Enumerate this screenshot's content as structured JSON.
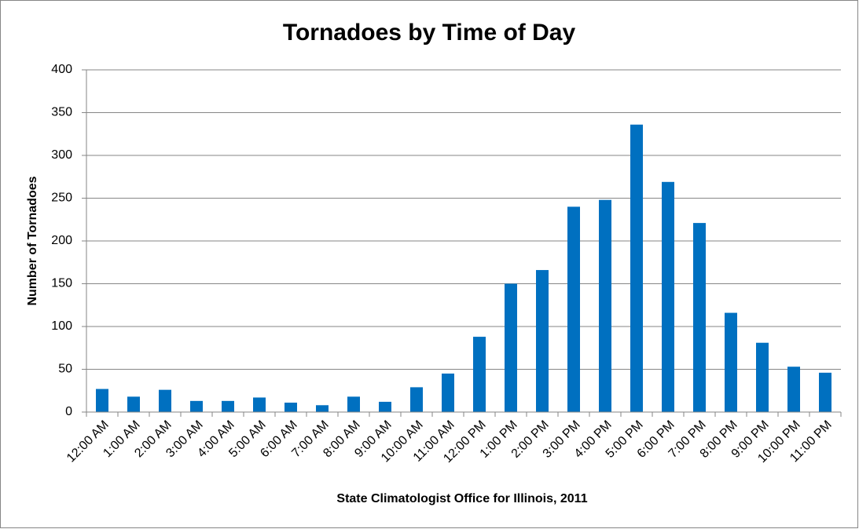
{
  "chart_data": {
    "type": "bar",
    "title": "Tornadoes by Time of Day",
    "x_label": "State Climatologist Office for Illinois, 2011",
    "y_label": "Number of Tornadoes",
    "categories": [
      "12:00 AM",
      "1:00 AM",
      "2:00 AM",
      "3:00 AM",
      "4:00 AM",
      "5:00 AM",
      "6:00 AM",
      "7:00 AM",
      "8:00 AM",
      "9:00 AM",
      "10:00 AM",
      "11:00 AM",
      "12:00 PM",
      "1:00 PM",
      "2:00 PM",
      "3:00 PM",
      "4:00 PM",
      "5:00 PM",
      "6:00 PM",
      "7:00 PM",
      "8:00 PM",
      "9:00 PM",
      "10:00 PM",
      "11:00 PM"
    ],
    "values": [
      27,
      18,
      26,
      13,
      13,
      17,
      11,
      8,
      18,
      12,
      29,
      45,
      88,
      150,
      166,
      240,
      248,
      336,
      269,
      221,
      116,
      81,
      53,
      46
    ],
    "color": "#0070c0",
    "ylim": [
      0,
      400
    ],
    "yticks": [
      0,
      50,
      100,
      150,
      200,
      250,
      300,
      350,
      400
    ],
    "grid": true
  }
}
